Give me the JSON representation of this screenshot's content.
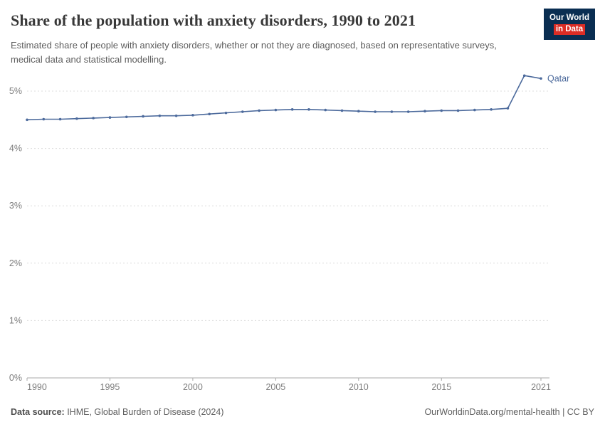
{
  "header": {
    "title": "Share of the population with anxiety disorders, 1990 to 2021",
    "subtitle": "Estimated share of people with anxiety disorders, whether or not they are diagnosed, based on representative surveys, medical data and statistical modelling.",
    "logo": {
      "line1": "Our World",
      "line2": "in Data"
    }
  },
  "chart_data": {
    "type": "line",
    "title": "Share of the population with anxiety disorders, 1990 to 2021",
    "xlabel": "",
    "ylabel": "",
    "ylim": [
      0,
      5.45
    ],
    "yticks": [
      0,
      1,
      2,
      3,
      4,
      5
    ],
    "ytick_labels": [
      "0%",
      "1%",
      "2%",
      "3%",
      "4%",
      "5%"
    ],
    "xticks": [
      1990,
      1995,
      2000,
      2005,
      2010,
      2015,
      2021
    ],
    "grid": "horizontal-dashed",
    "legend_position": "end-of-line-label",
    "line_color": "#4c6a9c",
    "x": [
      1990,
      1991,
      1992,
      1993,
      1994,
      1995,
      1996,
      1997,
      1998,
      1999,
      2000,
      2001,
      2002,
      2003,
      2004,
      2005,
      2006,
      2007,
      2008,
      2009,
      2010,
      2011,
      2012,
      2013,
      2014,
      2015,
      2016,
      2017,
      2018,
      2019,
      2020,
      2021
    ],
    "series": [
      {
        "name": "Qatar",
        "values": [
          4.5,
          4.51,
          4.51,
          4.52,
          4.53,
          4.54,
          4.55,
          4.56,
          4.57,
          4.57,
          4.58,
          4.6,
          4.62,
          4.64,
          4.66,
          4.67,
          4.68,
          4.68,
          4.67,
          4.66,
          4.65,
          4.64,
          4.64,
          4.64,
          4.65,
          4.66,
          4.66,
          4.67,
          4.68,
          4.7,
          5.27,
          5.22
        ]
      }
    ]
  },
  "footer": {
    "source_label": "Data source:",
    "source_text": " IHME, Global Burden of Disease (2024)",
    "right_text": "OurWorldinData.org/mental-health | CC BY"
  }
}
